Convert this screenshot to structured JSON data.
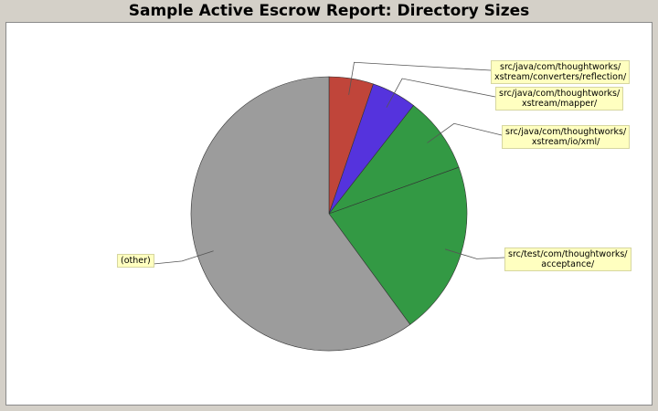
{
  "chart_data": {
    "type": "pie",
    "title": "Sample Active Escrow Report: Directory Sizes",
    "slices": [
      {
        "label": "src/java/com/thoughtworks/\nxstream/converters/reflection/",
        "value": 5.2,
        "color": "#c0453a"
      },
      {
        "label": "src/java/com/thoughtworks/\nxstream/mapper/",
        "value": 5.3,
        "color": "#5533dd"
      },
      {
        "label": "src/java/com/thoughtworks/\nxstream/io/xml/",
        "value": 9.0,
        "color": "#339944"
      },
      {
        "label": "src/test/com/thoughtworks/\nacceptance/",
        "value": 20.5,
        "color": "#339944"
      },
      {
        "label": "(other)",
        "value": 60.0,
        "color": "#9c9c9c"
      }
    ]
  }
}
